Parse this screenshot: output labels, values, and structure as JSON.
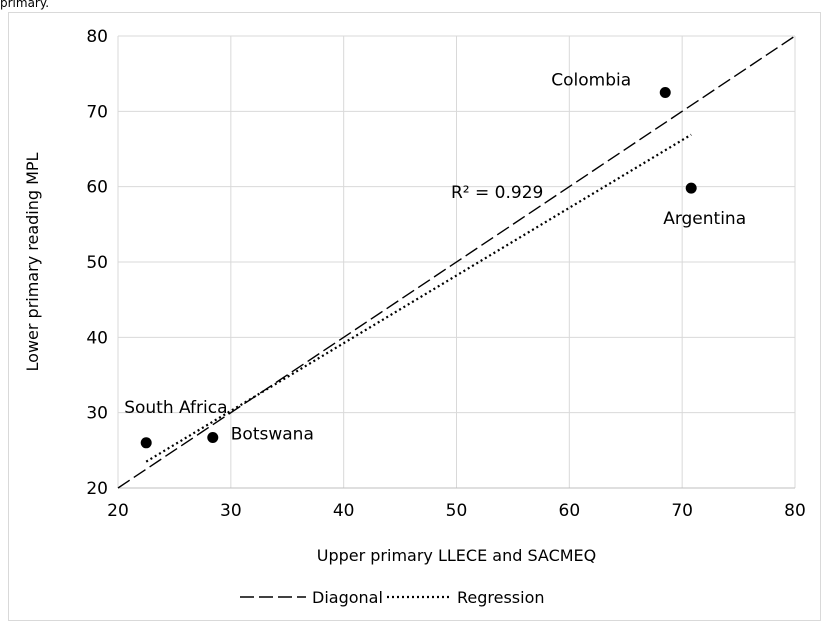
{
  "caption_fragment": "primary.",
  "chart_data": {
    "type": "scatter",
    "title": "",
    "xlabel": "Upper primary LLECE and SACMEQ",
    "ylabel": "Lower primary reading MPL",
    "xlim": [
      20,
      80
    ],
    "ylim": [
      20,
      80
    ],
    "xticks": [
      20,
      30,
      40,
      50,
      60,
      70,
      80
    ],
    "yticks": [
      20,
      30,
      40,
      50,
      60,
      70,
      80
    ],
    "grid": true,
    "legend_position": "bottom",
    "points": [
      {
        "label": "Colombia",
        "x": 68.5,
        "y": 72.5
      },
      {
        "label": "Argentina",
        "x": 70.8,
        "y": 59.8
      },
      {
        "label": "South Africa",
        "x": 22.5,
        "y": 26.0
      },
      {
        "label": "Botswana",
        "x": 28.4,
        "y": 26.7
      }
    ],
    "series": [
      {
        "name": "Diagonal",
        "style": "dashed",
        "x": [
          20,
          80
        ],
        "y": [
          20,
          80
        ]
      },
      {
        "name": "Regression",
        "style": "dotted",
        "x": [
          22.5,
          70.8
        ],
        "y": [
          23.5,
          66.9
        ]
      }
    ],
    "annotation": "R² = 0.929",
    "colors": {
      "marker": "#000000",
      "grid": "#d9d9d9",
      "line": "#000000"
    }
  }
}
